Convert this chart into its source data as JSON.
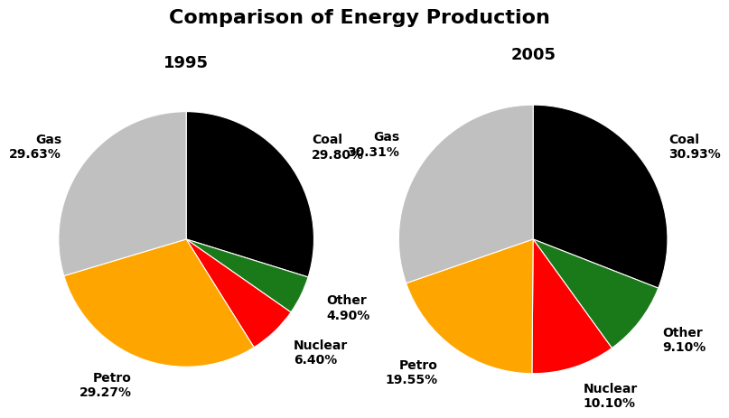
{
  "title": "Comparison of Energy Production",
  "title_fontsize": 16,
  "title_fontweight": "bold",
  "pie1_title": "1995",
  "pie2_title": "2005",
  "subtitle_fontsize": 13,
  "subtitle_fontweight": "bold",
  "categories": [
    "Coal",
    "Other",
    "Nuclear",
    "Petro",
    "Gas"
  ],
  "values_1995": [
    29.8,
    4.9,
    6.4,
    29.27,
    29.63
  ],
  "values_2005": [
    30.93,
    9.1,
    10.1,
    19.55,
    30.31
  ],
  "label_1995_coal": "Coal\n29.80%",
  "label_1995_other": "Other\n4.90%",
  "label_1995_nuclear": "Nuclear\n6.40%",
  "label_1995_petro": "Petro\n29.27%",
  "label_1995_gas": "Gas\n29.63%",
  "label_2005_coal": "Coal\n30.93%",
  "label_2005_other": "Other\n9.10%",
  "label_2005_nuclear": "Nuclear\n10.10%",
  "label_2005_petro": "Petro\n19.55%",
  "label_2005_gas": "Gas\n30.31%",
  "colors": [
    "#000000",
    "#1a7a1a",
    "#ff0000",
    "#ffa500",
    "#c0c0c0"
  ],
  "label_fontsize": 10,
  "background_color": "#ffffff"
}
